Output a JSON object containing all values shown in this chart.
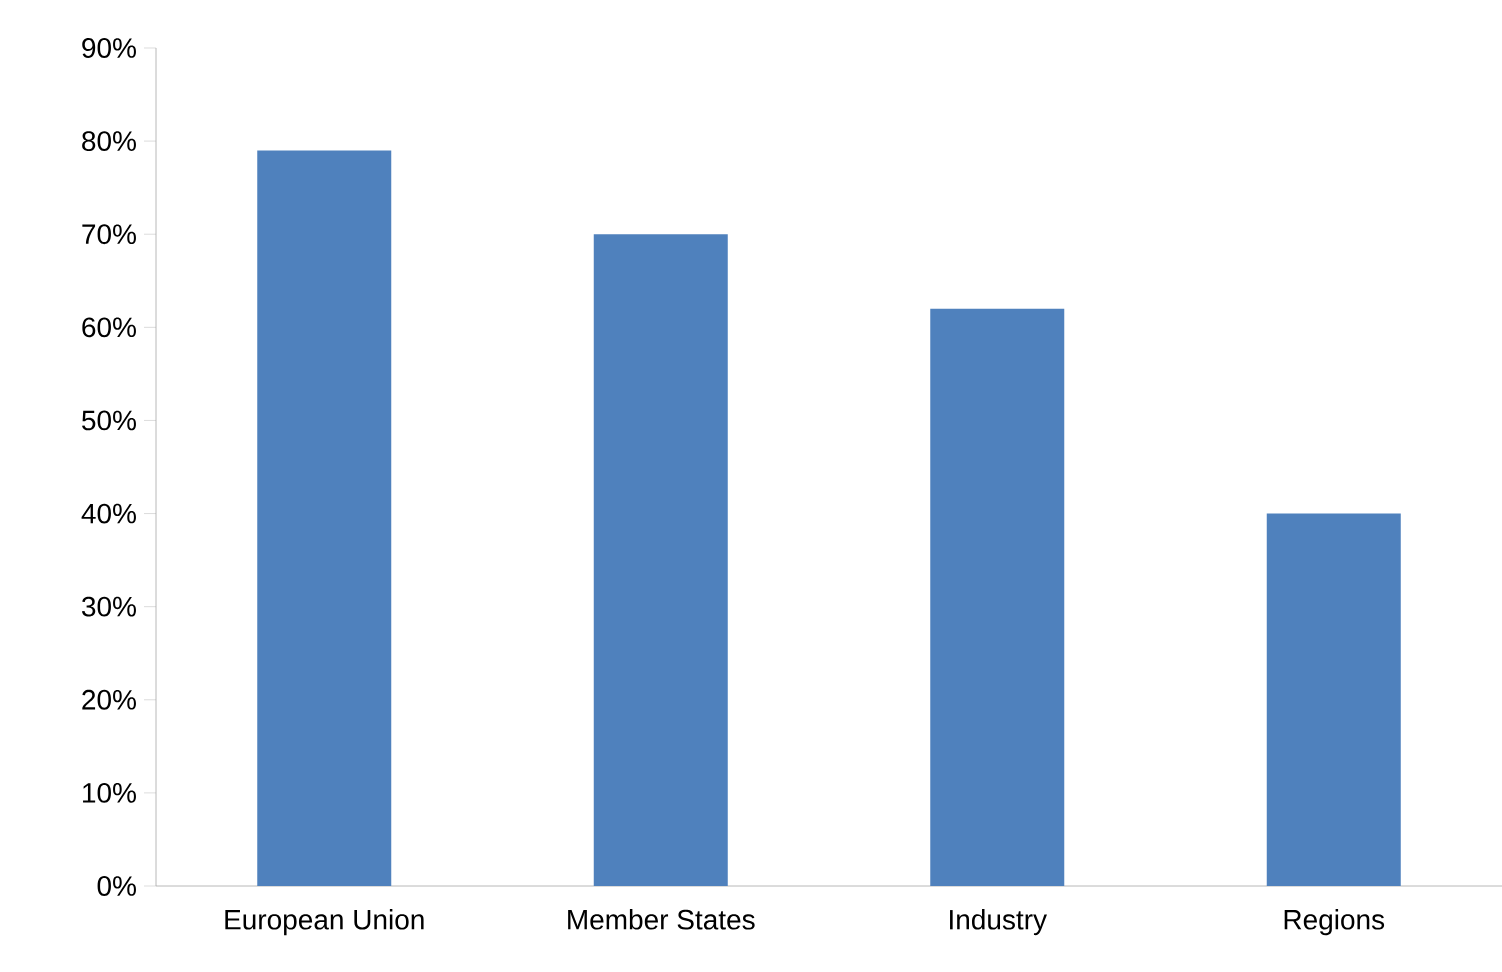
{
  "chart_data": {
    "type": "bar",
    "categories": [
      "European Union",
      "Member States",
      "Industry",
      "Regions"
    ],
    "values": [
      79,
      70,
      62,
      40
    ],
    "color": "#4f81bd",
    "ylim": [
      0,
      90
    ],
    "yticks": [
      {
        "value": 0,
        "label": "0%"
      },
      {
        "value": 10,
        "label": "10%"
      },
      {
        "value": 20,
        "label": "20%"
      },
      {
        "value": 30,
        "label": "30%"
      },
      {
        "value": 40,
        "label": "40%"
      },
      {
        "value": 50,
        "label": "50%"
      },
      {
        "value": 60,
        "label": "60%"
      },
      {
        "value": 70,
        "label": "70%"
      },
      {
        "value": 80,
        "label": "80%"
      },
      {
        "value": 90,
        "label": "90%"
      }
    ],
    "grid": false
  }
}
